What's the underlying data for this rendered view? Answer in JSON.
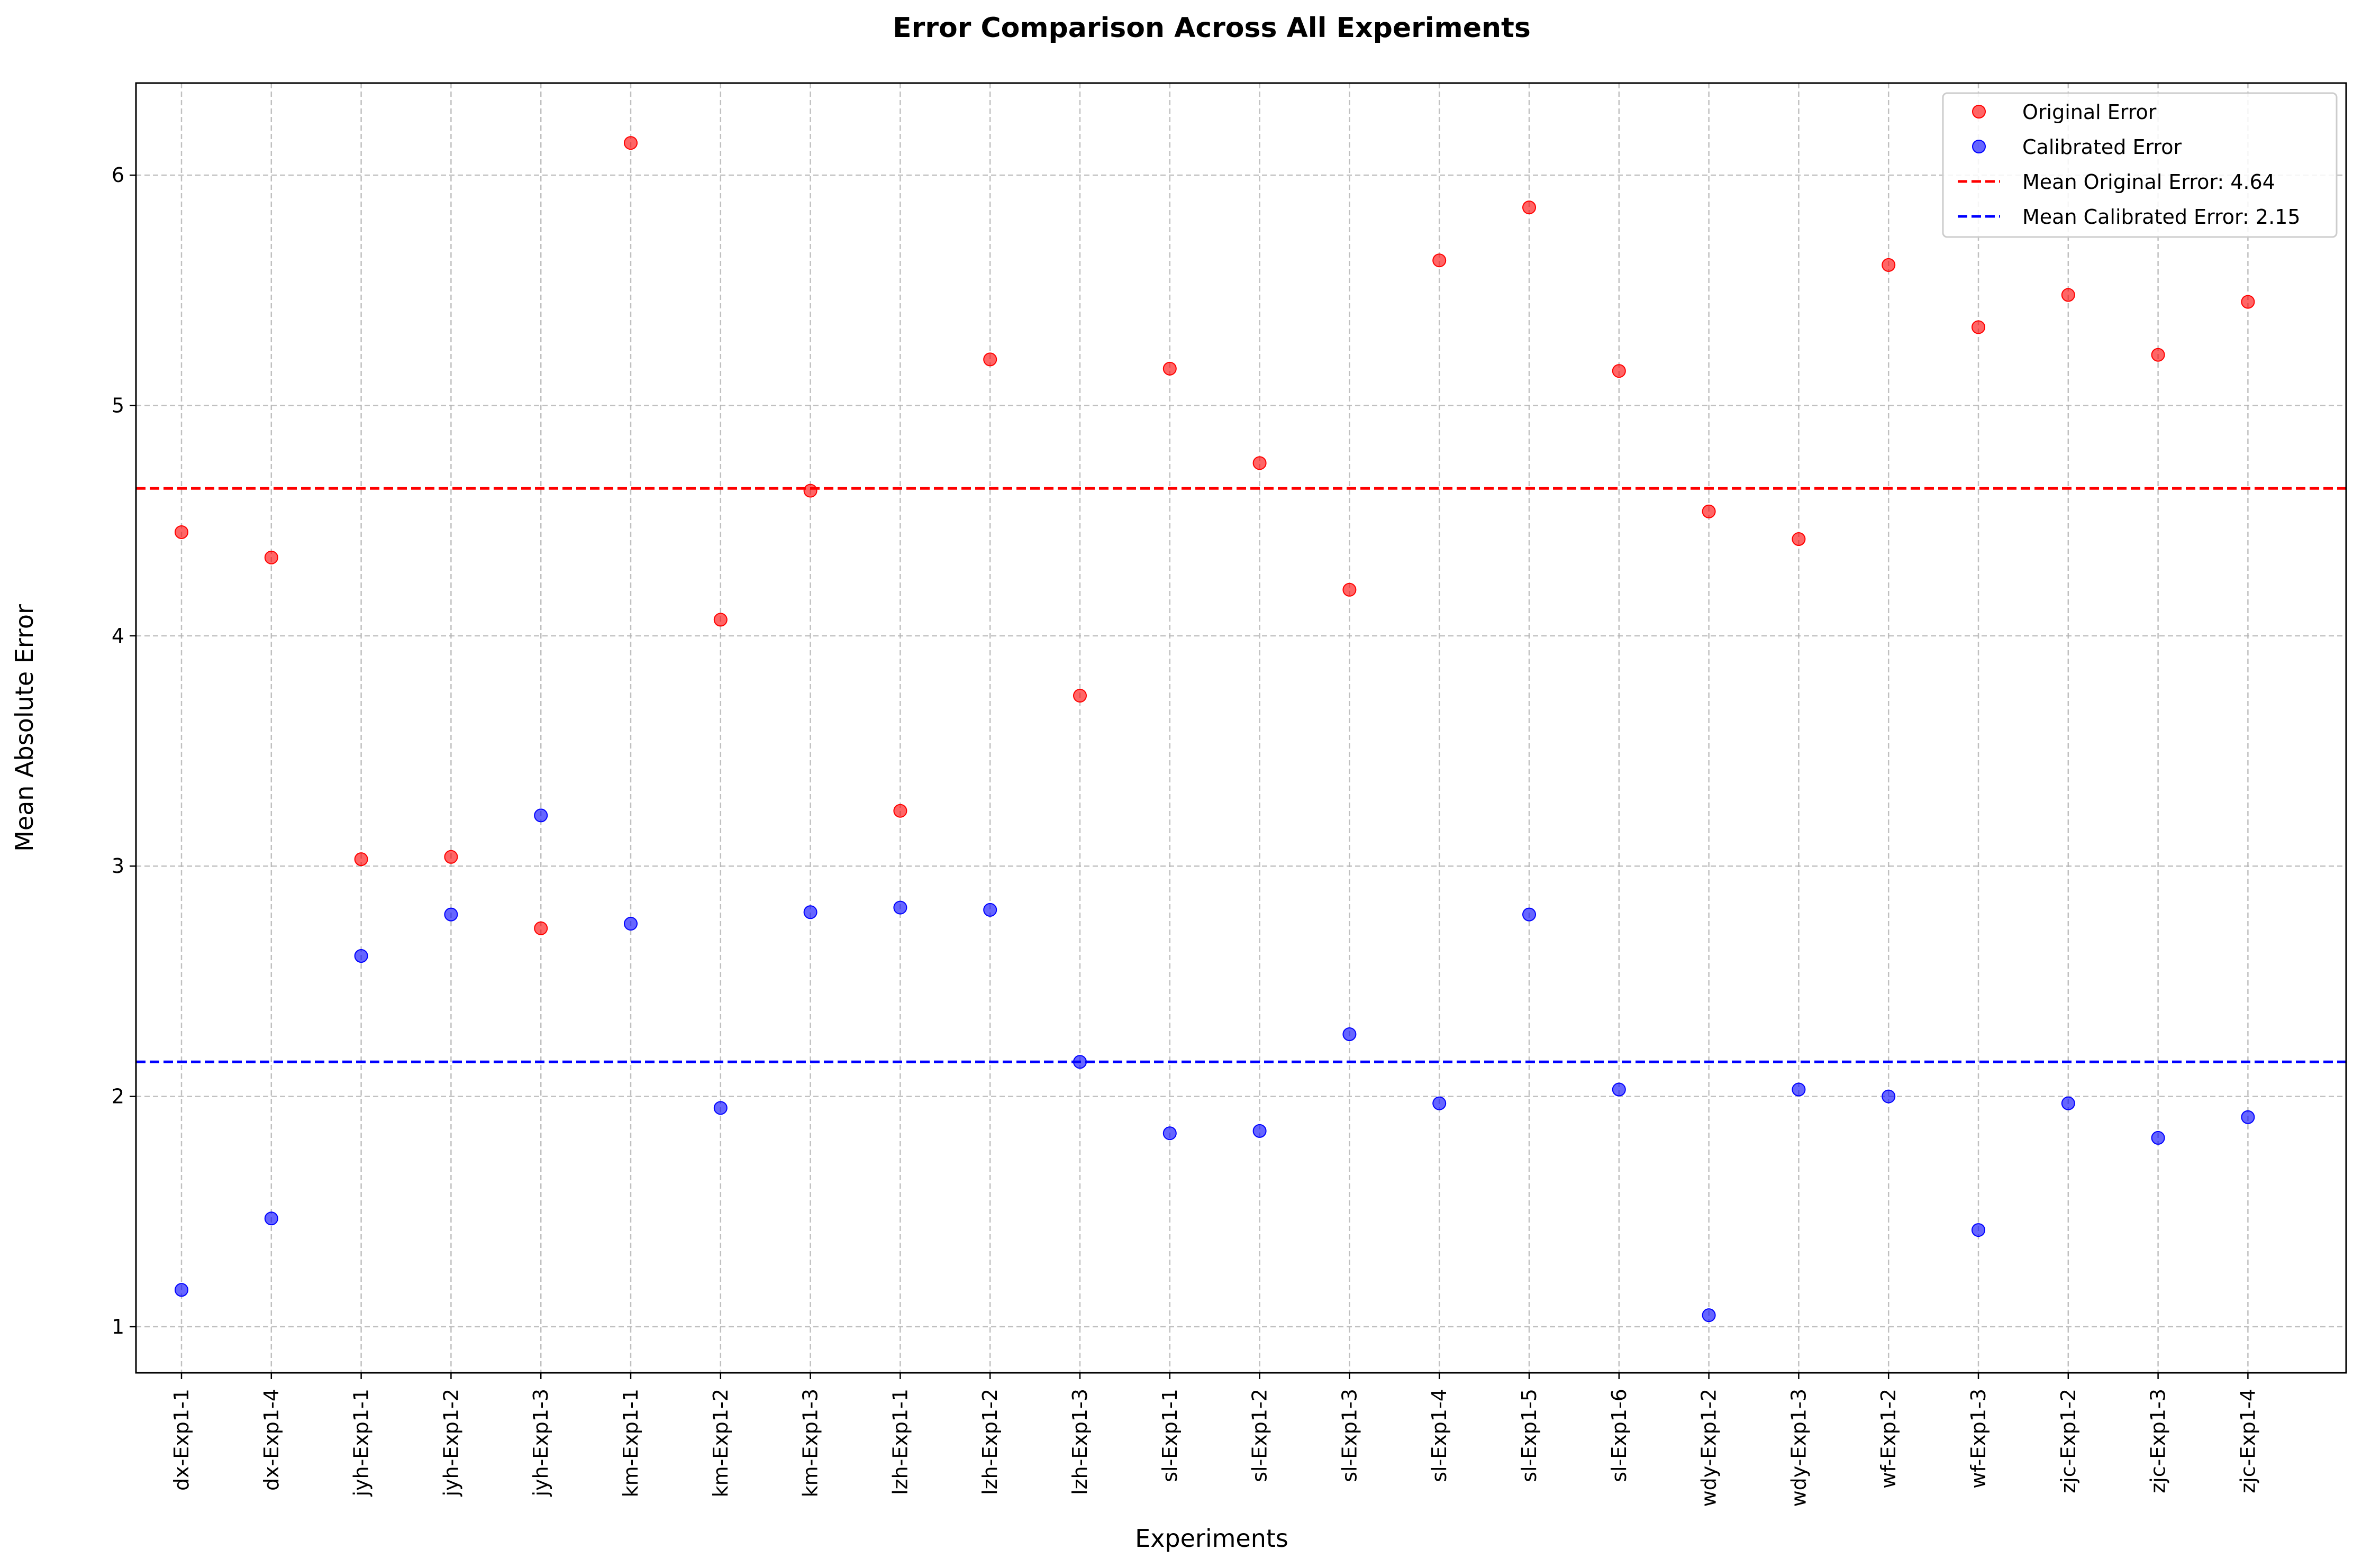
{
  "chart_data": {
    "type": "scatter",
    "title": "Error Comparison Across All Experiments",
    "xlabel": "Experiments",
    "ylabel": "Mean Absolute Error",
    "categories": [
      "dx-Exp1-1",
      "dx-Exp1-4",
      "jyh-Exp1-1",
      "jyh-Exp1-2",
      "jyh-Exp1-3",
      "km-Exp1-1",
      "km-Exp1-2",
      "km-Exp1-3",
      "lzh-Exp1-1",
      "lzh-Exp1-2",
      "lzh-Exp1-3",
      "sl-Exp1-1",
      "sl-Exp1-2",
      "sl-Exp1-3",
      "sl-Exp1-4",
      "sl-Exp1-5",
      "sl-Exp1-6",
      "wdy-Exp1-2",
      "wdy-Exp1-3",
      "wf-Exp1-2",
      "wf-Exp1-3",
      "zjc-Exp1-2",
      "zjc-Exp1-3",
      "zjc-Exp1-4"
    ],
    "series": [
      {
        "name": "Original Error",
        "color": "#ff0000",
        "values": [
          4.45,
          4.34,
          3.03,
          3.04,
          2.73,
          6.14,
          4.07,
          4.63,
          3.24,
          5.2,
          3.74,
          5.16,
          4.75,
          4.2,
          5.63,
          5.86,
          5.15,
          4.54,
          4.42,
          5.61,
          5.34,
          5.48,
          5.22,
          5.45
        ]
      },
      {
        "name": "Calibrated Error",
        "color": "#0000ff",
        "values": [
          1.16,
          1.47,
          2.61,
          2.79,
          3.22,
          2.75,
          1.95,
          2.8,
          2.82,
          2.81,
          2.15,
          1.84,
          1.85,
          2.27,
          1.97,
          2.79,
          2.03,
          1.05,
          2.03,
          2.0,
          1.42,
          1.97,
          1.82,
          1.91
        ]
      }
    ],
    "reference_lines": [
      {
        "label": "Mean Original Error: 4.64",
        "value": 4.64,
        "color": "#ff0000",
        "style": "dashed"
      },
      {
        "label": "Mean Calibrated Error: 2.15",
        "value": 2.15,
        "color": "#0000ff",
        "style": "dashed"
      }
    ],
    "ylim": [
      0.8,
      6.4
    ],
    "yticks": [
      1,
      2,
      3,
      4,
      5,
      6
    ],
    "grid": true,
    "legend": "top-right"
  }
}
